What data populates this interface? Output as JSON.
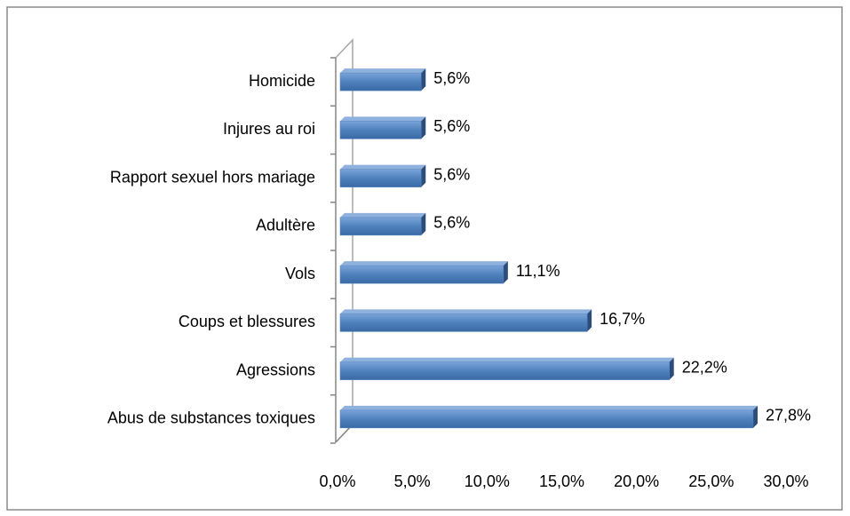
{
  "chart_data": {
    "type": "bar",
    "orientation": "horizontal",
    "categories": [
      "Homicide",
      "Injures au roi",
      "Rapport sexuel hors mariage",
      "Adultère",
      "Vols",
      "Coups et blessures",
      "Agressions",
      "Abus de substances toxiques"
    ],
    "values": [
      5.6,
      5.6,
      5.6,
      5.6,
      11.1,
      16.7,
      22.2,
      27.8
    ],
    "value_labels": [
      "5,6%",
      "5,6%",
      "5,6%",
      "5,6%",
      "11,1%",
      "16,7%",
      "22,2%",
      "27,8%"
    ],
    "color": "#4f81bd",
    "xlim": [
      0,
      30
    ],
    "xticks": [
      {
        "value": 0,
        "label": "0,0%"
      },
      {
        "value": 5,
        "label": "5,0%"
      },
      {
        "value": 10,
        "label": "10,0%"
      },
      {
        "value": 15,
        "label": "15,0%"
      },
      {
        "value": 20,
        "label": "20,0%"
      },
      {
        "value": 25,
        "label": "25,0%"
      },
      {
        "value": 30,
        "label": "30,0%"
      }
    ],
    "grid": false
  }
}
